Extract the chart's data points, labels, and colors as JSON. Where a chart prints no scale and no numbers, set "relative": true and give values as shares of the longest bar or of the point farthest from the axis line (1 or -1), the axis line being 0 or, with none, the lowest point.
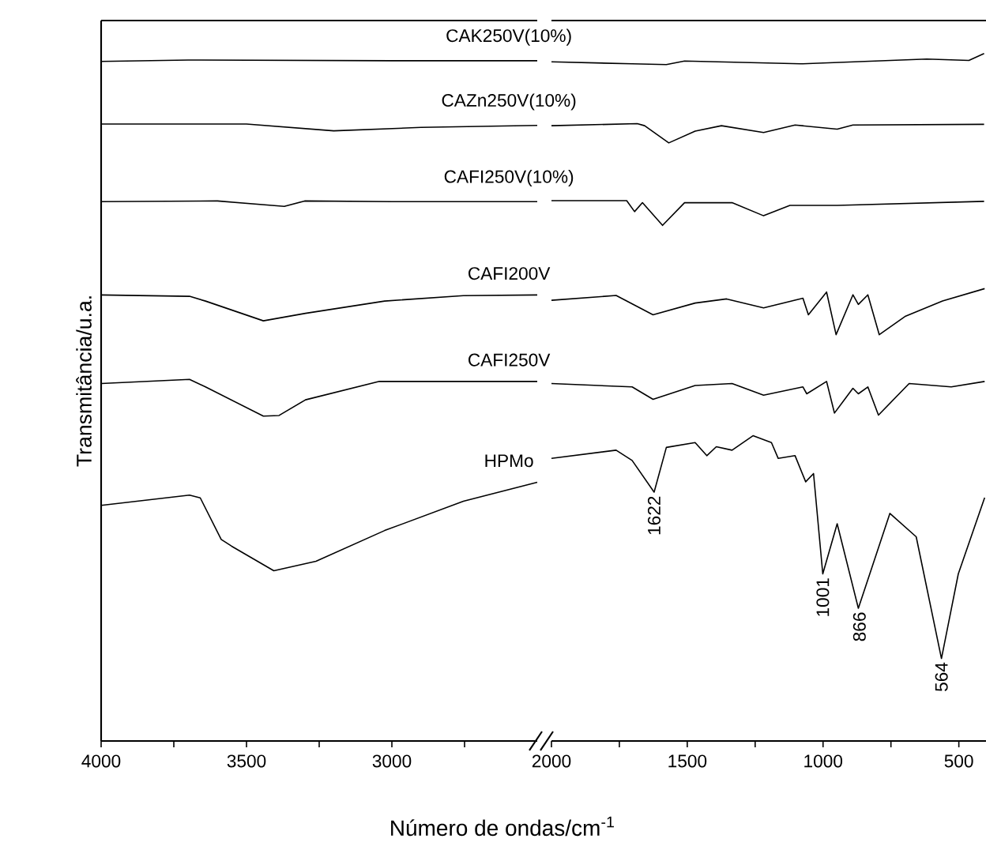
{
  "chart_data": [
    {
      "type": "line",
      "relative": true,
      "tick_labels": "x",
      "ylabel": "Transmitância/u.a.",
      "xlabel": "Número de ondas/cm$^{-1}$",
      "xlim": [
        4000,
        2500
      ],
      "xticks": [
        4000,
        {
          "value": 3750,
          "label": null
        },
        3500,
        {
          "value": 3250,
          "label": null
        },
        3000,
        {
          "value": 2750,
          "label": null
        }
      ],
      "series": [
        {
          "name": "CAK250V(10%)",
          "color": "#000000",
          "x": [
            4000,
            3700,
            3000,
            2500
          ],
          "values": [
            0.998,
            1.0,
            0.999,
            0.999
          ]
        },
        {
          "name": "CAZn250V(10%)",
          "color": "#000000",
          "x": [
            4000,
            3500,
            3200,
            2900,
            2500
          ],
          "values": [
            0.906,
            0.906,
            0.896,
            0.901,
            0.904
          ]
        },
        {
          "name": "CAFI250V(10%)",
          "color": "#000000",
          "x": [
            4000,
            3600,
            3370,
            3300,
            3000,
            2500
          ],
          "values": [
            0.792,
            0.793,
            0.785,
            0.793,
            0.792,
            0.792
          ]
        },
        {
          "name": "CAFI200V",
          "color": "#000000",
          "x": [
            4000,
            3696,
            3641,
            3442,
            3297,
            3025,
            2754,
            2500
          ],
          "values": [
            0.655,
            0.653,
            0.646,
            0.617,
            0.628,
            0.646,
            0.654,
            0.655
          ]
        },
        {
          "name": "CAFI250V",
          "color": "#000000",
          "x": [
            4000,
            3696,
            3641,
            3442,
            3388,
            3297,
            3043,
            2500
          ],
          "values": [
            0.525,
            0.531,
            0.52,
            0.477,
            0.478,
            0.501,
            0.528,
            0.528
          ]
        },
        {
          "name": "HPMo",
          "color": "#000000",
          "x": [
            4000,
            3696,
            3659,
            3587,
            3551,
            3406,
            3261,
            3025,
            2754,
            2500
          ],
          "values": [
            0.346,
            0.361,
            0.357,
            0.296,
            0.286,
            0.25,
            0.264,
            0.309,
            0.352,
            0.38
          ]
        }
      ]
    },
    {
      "type": "line",
      "relative": true,
      "tick_labels": "x",
      "xlim": [
        2000,
        400
      ],
      "xticks": [
        2000,
        {
          "value": 1750,
          "label": null
        },
        1500,
        {
          "value": 1250,
          "label": null
        },
        1000,
        {
          "value": 750,
          "label": null
        },
        500
      ],
      "series": [
        {
          "color": "#000000",
          "x": [
            2000,
            1703,
            1577,
            1510,
            1083,
            618,
            463,
            407
          ],
          "values": [
            0.988,
            0.985,
            0.984,
            0.989,
            0.985,
            0.992,
            0.99,
            1.0
          ]
        },
        {
          "color": "#000000",
          "x": [
            2000,
            1684,
            1657,
            1568,
            1471,
            1374,
            1219,
            1103,
            948,
            890,
            407
          ],
          "values": [
            0.895,
            0.898,
            0.895,
            0.87,
            0.887,
            0.895,
            0.885,
            0.896,
            0.89,
            0.896,
            0.897
          ]
        },
        {
          "color": "#000000",
          "x": [
            2000,
            1723,
            1694,
            1665,
            1591,
            1510,
            1335,
            1219,
            1122,
            948,
            407
          ],
          "values": [
            0.786,
            0.786,
            0.77,
            0.783,
            0.75,
            0.783,
            0.783,
            0.764,
            0.779,
            0.779,
            0.785
          ]
        },
        {
          "color": "#000000",
          "x": [
            2000,
            1762,
            1626,
            1471,
            1355,
            1219,
            1074,
            1054,
            987,
            952,
            890,
            870,
            835,
            793,
            696,
            560,
            405
          ],
          "values": [
            0.641,
            0.648,
            0.62,
            0.637,
            0.643,
            0.63,
            0.644,
            0.62,
            0.653,
            0.591,
            0.649,
            0.635,
            0.649,
            0.591,
            0.618,
            0.64,
            0.658
          ]
        },
        {
          "color": "#000000",
          "x": [
            2000,
            1703,
            1626,
            1471,
            1335,
            1219,
            1074,
            1060,
            987,
            958,
            890,
            870,
            835,
            796,
            683,
            528,
            405
          ],
          "values": [
            0.52,
            0.515,
            0.497,
            0.517,
            0.52,
            0.503,
            0.515,
            0.505,
            0.523,
            0.477,
            0.513,
            0.505,
            0.515,
            0.474,
            0.52,
            0.515,
            0.523
          ]
        },
        {
          "color": "#000000",
          "x": [
            2000,
            1762,
            1703,
            1622,
            1577,
            1471,
            1428,
            1393,
            1335,
            1258,
            1190,
            1165,
            1103,
            1064,
            1035,
            1001,
            948,
            870,
            754,
            657,
            564,
            502,
            405
          ],
          "values": [
            0.411,
            0.423,
            0.408,
            0.362,
            0.427,
            0.434,
            0.415,
            0.428,
            0.423,
            0.444,
            0.434,
            0.411,
            0.415,
            0.377,
            0.389,
            0.243,
            0.316,
            0.193,
            0.331,
            0.297,
            0.12,
            0.243,
            0.354
          ]
        }
      ],
      "annotations": [
        {
          "text": "1622",
          "x": 1622,
          "y": 0.362
        },
        {
          "text": "1001",
          "x": 1001,
          "y": 0.243
        },
        {
          "text": "866",
          "x": 866,
          "y": 0.193
        },
        {
          "text": "564",
          "x": 564,
          "y": 0.12
        }
      ]
    }
  ]
}
